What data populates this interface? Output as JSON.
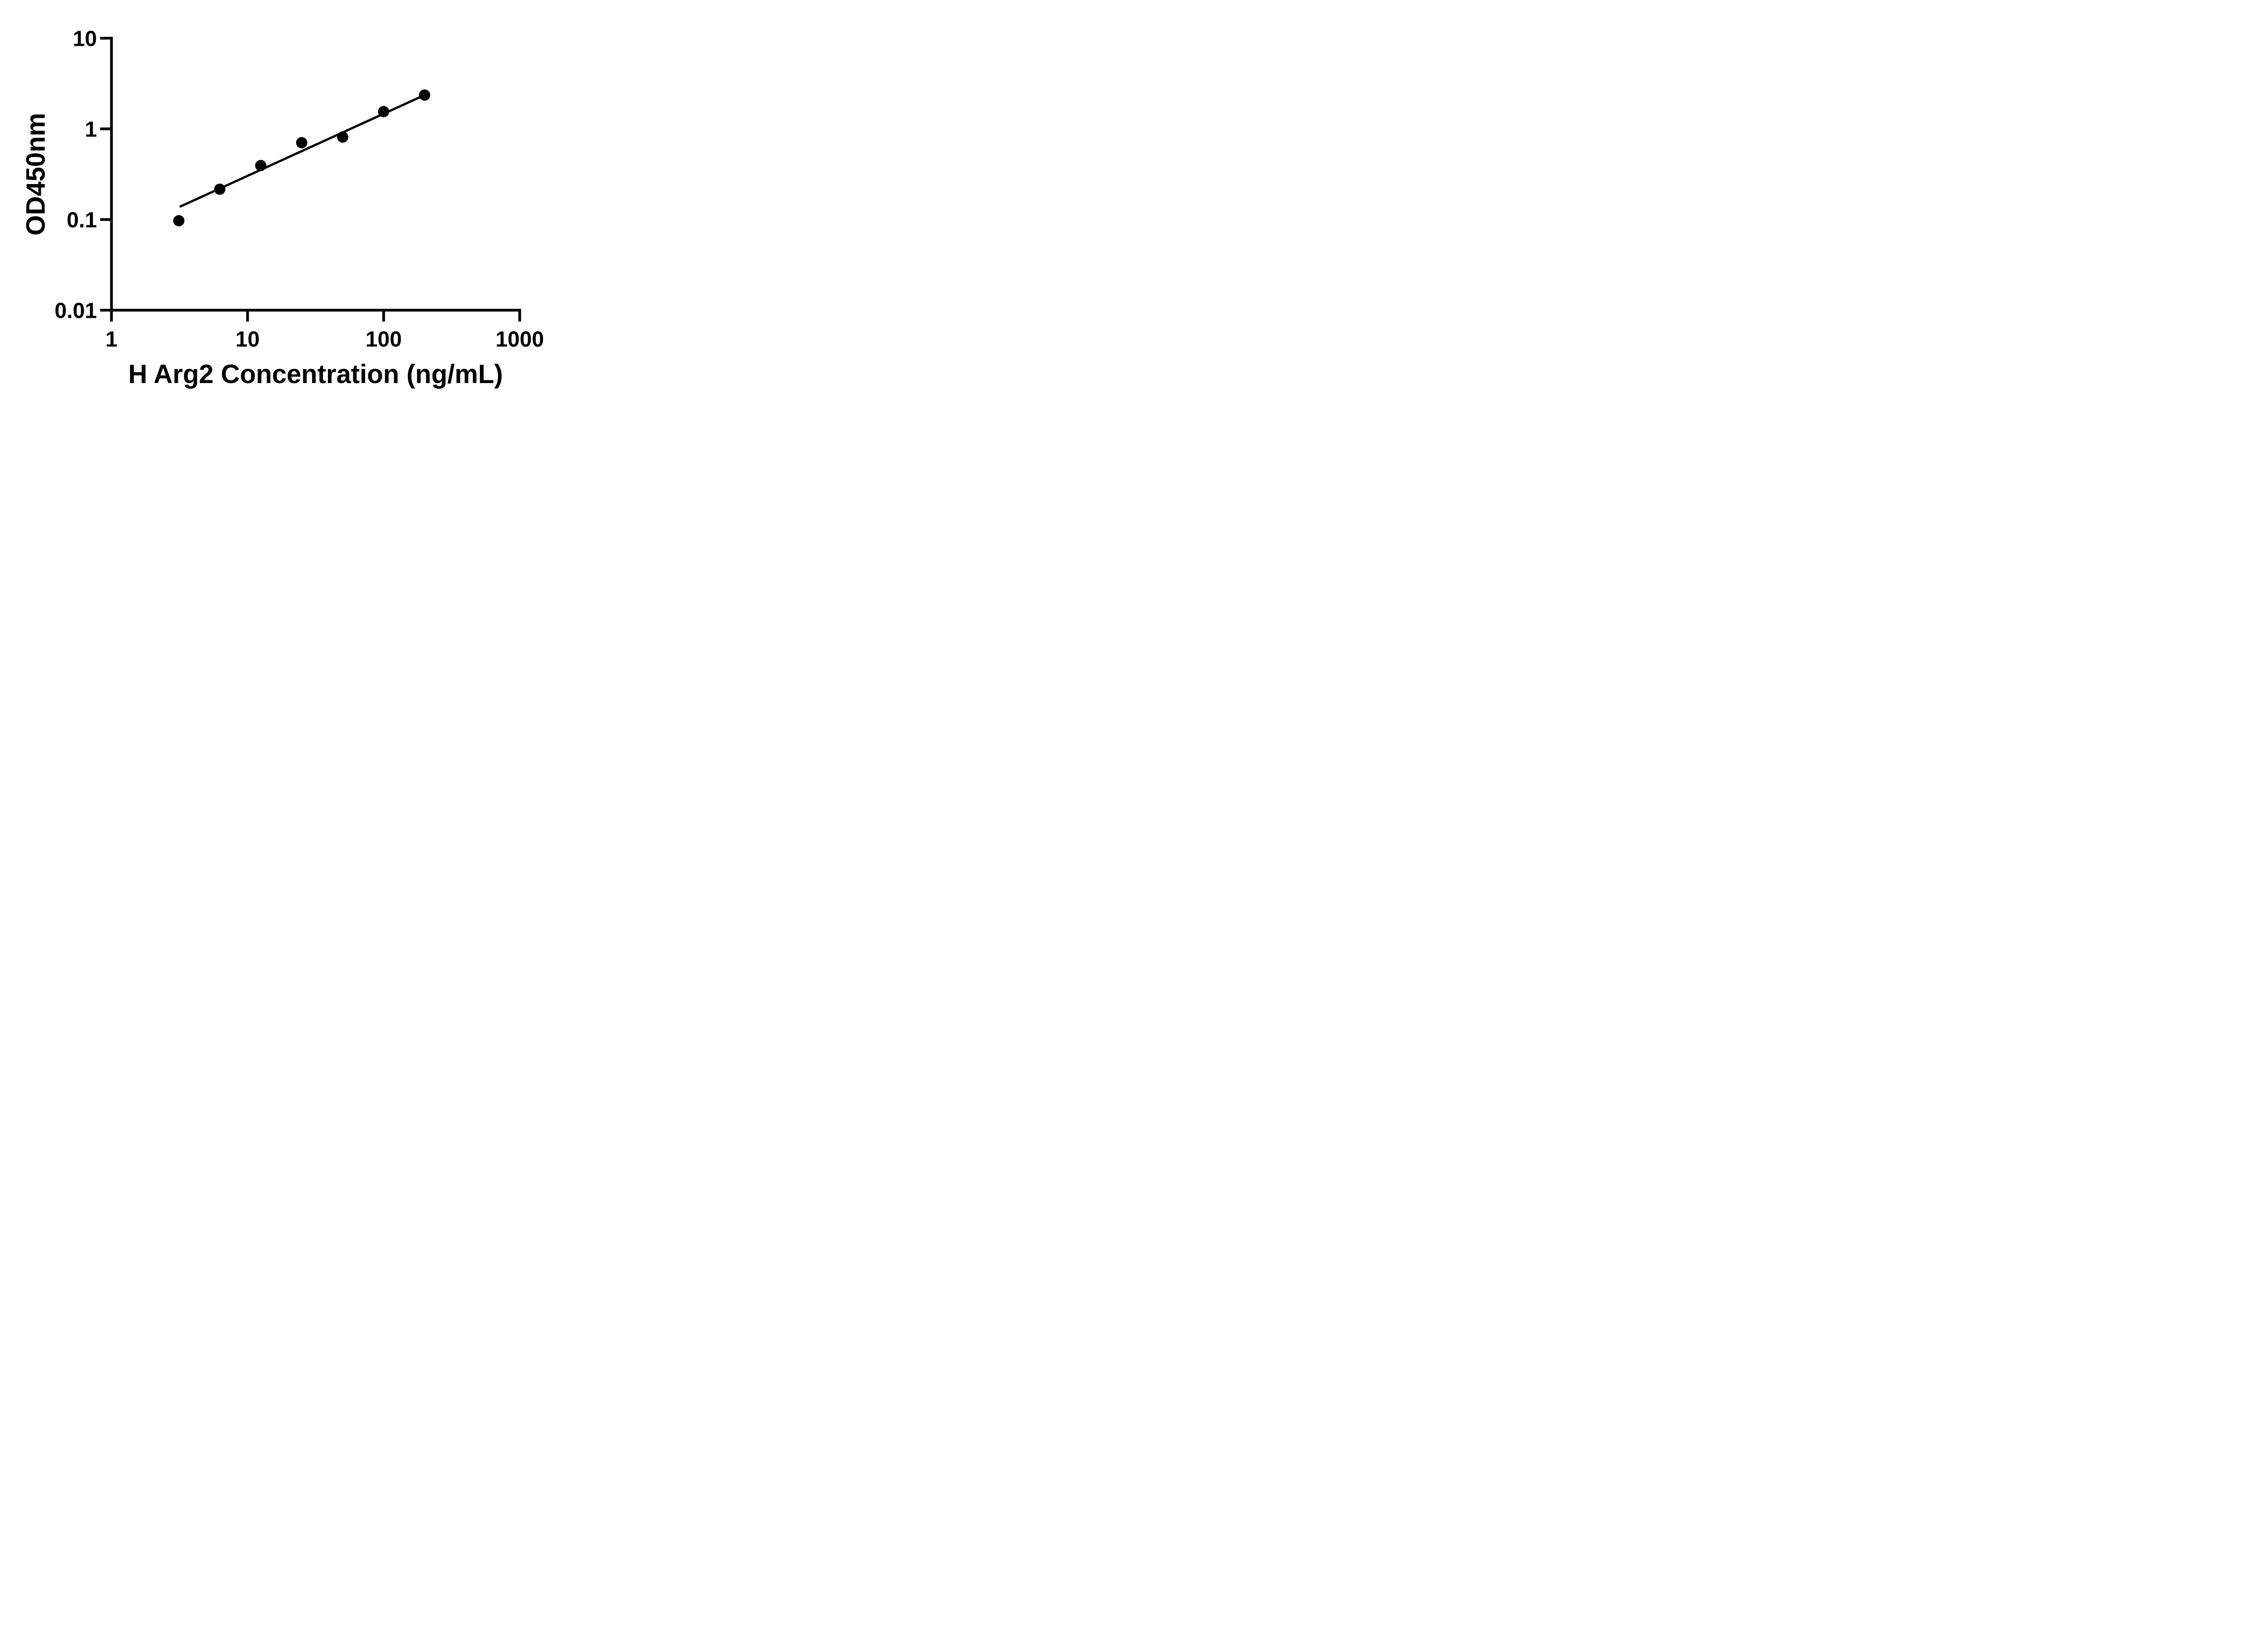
{
  "chart_data": {
    "type": "scatter",
    "title": "",
    "xlabel": "H Arg2 Concentration (ng/mL)",
    "ylabel": "OD450nm",
    "x_scale": "log",
    "y_scale": "log",
    "xlim": [
      1,
      1000
    ],
    "ylim": [
      0.01,
      10
    ],
    "grid": false,
    "legend": "none",
    "x_ticks": [
      {
        "value": 1,
        "label": "1"
      },
      {
        "value": 10,
        "label": "10"
      },
      {
        "value": 100,
        "label": "100"
      },
      {
        "value": 1000,
        "label": "1000"
      }
    ],
    "y_ticks": [
      {
        "value": 10,
        "label": "10"
      },
      {
        "value": 1,
        "label": "1"
      },
      {
        "value": 0.1,
        "label": "0.1"
      },
      {
        "value": 0.01,
        "label": "0.01"
      }
    ],
    "series": [
      {
        "name": "standard-points",
        "type": "points",
        "points": [
          {
            "x": 3.125,
            "y": 0.097
          },
          {
            "x": 6.25,
            "y": 0.216
          },
          {
            "x": 12.5,
            "y": 0.394
          },
          {
            "x": 25,
            "y": 0.704
          },
          {
            "x": 50,
            "y": 0.813
          },
          {
            "x": 100,
            "y": 1.55
          },
          {
            "x": 200,
            "y": 2.36
          }
        ]
      },
      {
        "name": "fit-line",
        "type": "line",
        "from": {
          "x": 3.17,
          "y": 0.138
        },
        "to": {
          "x": 200,
          "y": 2.36
        }
      }
    ],
    "colors": {
      "points": "#000000",
      "line": "#000000",
      "axis": "#000000",
      "text": "#000000",
      "background": "#ffffff"
    }
  }
}
